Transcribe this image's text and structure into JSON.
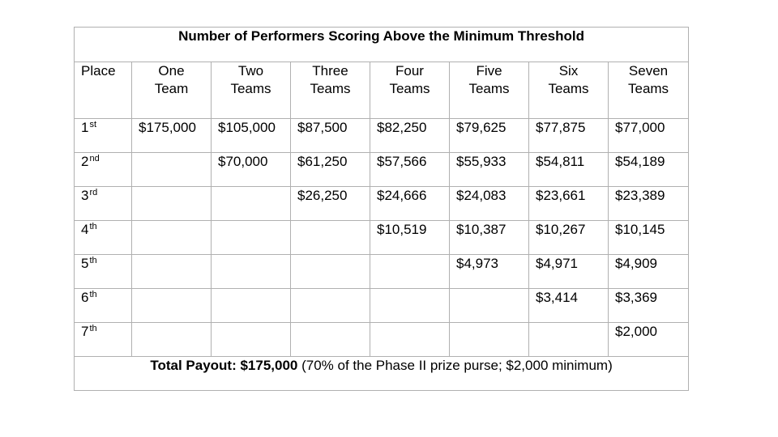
{
  "title": "Number of Performers Scoring Above the Minimum Threshold",
  "header": {
    "place_label": "Place",
    "columns": [
      {
        "line1": "One",
        "line2": "Team"
      },
      {
        "line1": "Two",
        "line2": "Teams"
      },
      {
        "line1": "Three",
        "line2": "Teams"
      },
      {
        "line1": "Four",
        "line2": "Teams"
      },
      {
        "line1": "Five",
        "line2": "Teams"
      },
      {
        "line1": "Six",
        "line2": "Teams"
      },
      {
        "line1": "Seven",
        "line2": "Teams"
      }
    ]
  },
  "rows": [
    {
      "place_num": "1",
      "place_suffix": "st",
      "values": [
        "$175,000",
        "$105,000",
        "$87,500",
        "$82,250",
        "$79,625",
        "$77,875",
        "$77,000"
      ]
    },
    {
      "place_num": "2",
      "place_suffix": "nd",
      "values": [
        "",
        "$70,000",
        "$61,250",
        "$57,566",
        "$55,933",
        "$54,811",
        "$54,189"
      ]
    },
    {
      "place_num": "3",
      "place_suffix": "rd",
      "values": [
        "",
        "",
        "$26,250",
        "$24,666",
        "$24,083",
        "$23,661",
        "$23,389"
      ]
    },
    {
      "place_num": "4",
      "place_suffix": "th",
      "values": [
        "",
        "",
        "",
        "$10,519",
        "$10,387",
        "$10,267",
        "$10,145"
      ]
    },
    {
      "place_num": "5",
      "place_suffix": "th",
      "values": [
        "",
        "",
        "",
        "",
        "$4,973",
        "$4,971",
        "$4,909"
      ]
    },
    {
      "place_num": "6",
      "place_suffix": "th",
      "values": [
        "",
        "",
        "",
        "",
        "",
        "$3,414",
        "$3,369"
      ]
    },
    {
      "place_num": "7",
      "place_suffix": "th",
      "values": [
        "",
        "",
        "",
        "",
        "",
        "",
        "$2,000"
      ]
    }
  ],
  "footer": {
    "bold_text": "Total Payout: $175,000",
    "normal_text": " (70% of the Phase II prize purse; $2,000 minimum)"
  }
}
